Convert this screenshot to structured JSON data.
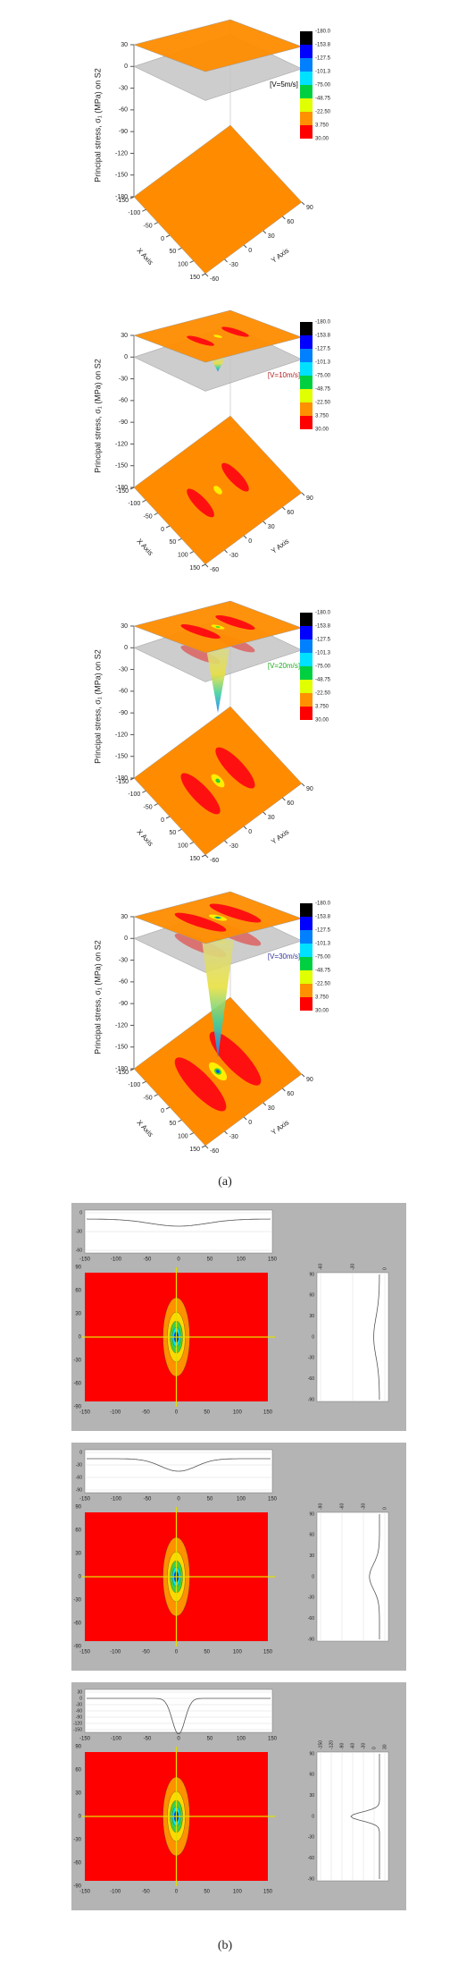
{
  "figure_a": {
    "label": "(a)",
    "plots": [
      {
        "legend": "[V=5m/s]",
        "legend_color": "#000000",
        "z_axis_label": "Principal stress, σ₁ (MPa) on S2",
        "x_axis_label": "X Axis",
        "y_axis_label": "Y Axis",
        "z_ticks": [
          30,
          0,
          -30,
          -60,
          -90,
          -120,
          -150,
          -180
        ],
        "x_ticks": [
          -150,
          -100,
          -50,
          0,
          50,
          100,
          150
        ],
        "y_ticks": [
          -60,
          -30,
          0,
          30,
          60,
          90
        ],
        "colorbar_labels": [
          "-180.0",
          "-153.8",
          "-127.5",
          "-101.3",
          "-75.00",
          "-48.75",
          "-22.50",
          "3.750",
          "30.00"
        ]
      },
      {
        "legend": "[V=10m/s]",
        "legend_color": "#b22222",
        "z_axis_label": "Principal stress, σ₁ (MPa) on S2",
        "x_axis_label": "X Axis",
        "y_axis_label": "Y Axis",
        "z_ticks": [
          30,
          0,
          -30,
          -60,
          -90,
          -120,
          -150,
          -180
        ],
        "x_ticks": [
          -150,
          -100,
          -50,
          0,
          50,
          100,
          150
        ],
        "y_ticks": [
          -60,
          -30,
          0,
          30,
          60,
          90
        ],
        "colorbar_labels": [
          "-180.0",
          "-153.8",
          "-127.5",
          "-101.3",
          "-75.00",
          "-48.75",
          "-22.50",
          "3.750",
          "30.00"
        ]
      },
      {
        "legend": "[V=20m/s]",
        "legend_color": "#22aa22",
        "z_axis_label": "Principal stress, σ₁ (MPa) on S2",
        "x_axis_label": "X Axis",
        "y_axis_label": "Y Axis",
        "z_ticks": [
          30,
          0,
          -30,
          -60,
          -90,
          -120,
          -150,
          -180
        ],
        "x_ticks": [
          -150,
          -100,
          -50,
          0,
          50,
          100,
          150
        ],
        "y_ticks": [
          -60,
          -30,
          0,
          30,
          60,
          90
        ],
        "colorbar_labels": [
          "-180.0",
          "-153.8",
          "-127.5",
          "-101.3",
          "-75.00",
          "-48.75",
          "-22.50",
          "3.750",
          "30.00"
        ]
      },
      {
        "legend": "[V=30m/s]",
        "legend_color": "#333399",
        "z_axis_label": "Principal stress, σ₁ (MPa) on S2",
        "x_axis_label": "X Axis",
        "y_axis_label": "Y Axis",
        "z_ticks": [
          30,
          0,
          -30,
          -60,
          -90,
          -120,
          -150,
          -180
        ],
        "x_ticks": [
          -150,
          -100,
          -50,
          0,
          50,
          100,
          150
        ],
        "y_ticks": [
          -60,
          -30,
          0,
          30,
          60,
          90
        ],
        "colorbar_labels": [
          "-180.0",
          "-153.8",
          "-127.5",
          "-101.3",
          "-75.00",
          "-48.75",
          "-22.50",
          "3.750",
          "30.00"
        ]
      }
    ]
  },
  "figure_b": {
    "label": "(b)",
    "panels": [
      {
        "profile_x": {
          "x_ticks": [
            -150,
            -100,
            -50,
            0,
            50,
            100,
            150
          ],
          "y_ticks": [
            0,
            -30,
            -60
          ]
        },
        "contour": {
          "x_ticks": [
            -150,
            -100,
            -50,
            0,
            50,
            100,
            150
          ],
          "y_ticks": [
            90,
            60,
            30,
            0,
            -30,
            -60,
            -90
          ]
        },
        "profile_y": {
          "value_ticks": [
            -60,
            -30,
            0
          ],
          "y_ticks": [
            90,
            60,
            30,
            0,
            -30,
            -60,
            -90
          ]
        }
      },
      {
        "profile_x": {
          "x_ticks": [
            -150,
            -100,
            -50,
            0,
            50,
            100,
            150
          ],
          "y_ticks": [
            0,
            -30,
            -60,
            -90
          ]
        },
        "contour": {
          "x_ticks": [
            -150,
            -100,
            -50,
            0,
            50,
            100,
            150
          ],
          "y_ticks": [
            90,
            60,
            30,
            0,
            -30,
            -60,
            -90
          ]
        },
        "profile_y": {
          "value_ticks": [
            -90,
            -60,
            -30,
            0
          ],
          "y_ticks": [
            90,
            60,
            30,
            0,
            -30,
            -60,
            -90
          ]
        }
      },
      {
        "profile_x": {
          "x_ticks": [
            -150,
            -100,
            -50,
            0,
            50,
            100,
            150
          ],
          "y_ticks": [
            30,
            0,
            -30,
            -60,
            -90,
            -120,
            -150
          ]
        },
        "contour": {
          "x_ticks": [
            -150,
            -100,
            -50,
            0,
            50,
            100,
            150
          ],
          "y_ticks": [
            90,
            60,
            30,
            0,
            -30,
            -60,
            -90
          ]
        },
        "profile_y": {
          "value_ticks": [
            -150,
            -120,
            -90,
            -60,
            -30,
            0,
            30
          ],
          "y_ticks": [
            90,
            60,
            30,
            0,
            -30,
            -60,
            -90
          ]
        }
      }
    ]
  }
}
